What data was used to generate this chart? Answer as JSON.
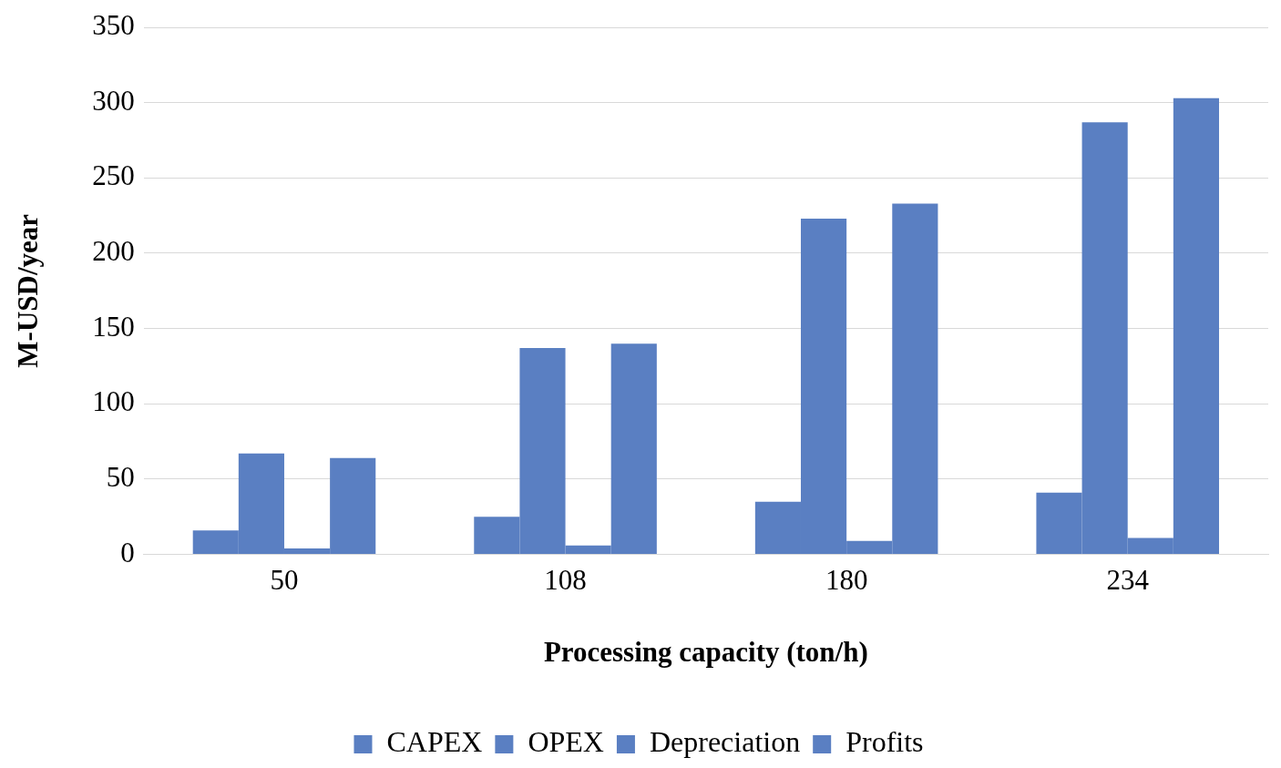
{
  "chart_data": {
    "type": "bar",
    "xlabel": "Processing capacity (ton/h)",
    "ylabel": "M-USD/year",
    "categories": [
      "50",
      "108",
      "180",
      "234"
    ],
    "series": [
      {
        "name": "CAPEX",
        "color": "#5a7fc2",
        "values": [
          16,
          25,
          35,
          41
        ]
      },
      {
        "name": "OPEX",
        "color": "#5a7fc2",
        "values": [
          67,
          137,
          223,
          287
        ]
      },
      {
        "name": "Depreciation",
        "color": "#5a7fc2",
        "values": [
          4,
          6,
          9,
          11
        ]
      },
      {
        "name": "Profits",
        "color": "#5a7fc2",
        "values": [
          64,
          140,
          233,
          303
        ]
      }
    ],
    "ylim": [
      0,
      350
    ],
    "yticks": [
      0,
      50,
      100,
      150,
      200,
      250,
      300,
      350
    ],
    "grid": "y",
    "legend": "bottom"
  }
}
